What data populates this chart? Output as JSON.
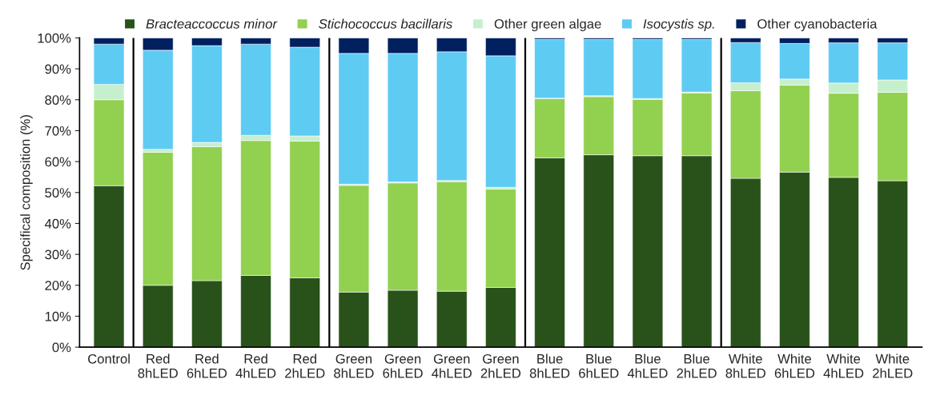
{
  "chart_data": {
    "type": "bar",
    "stacked": true,
    "ylabel": "Specifical composition (%)",
    "categories": [
      "Control",
      "Red\n8hLED",
      "Red\n6hLED",
      "Red\n4hLED",
      "Red\n2hLED",
      "Green\n8hLED",
      "Green\n6hLED",
      "Green\n4hLED",
      "Green\n2hLED",
      "Blue\n8hLED",
      "Blue\n6hLED",
      "Blue\n4hLED",
      "Blue\n2hLED",
      "White\n8hLED",
      "White\n6hLED",
      "White\n4hLED",
      "White\n2hLED"
    ],
    "series": [
      {
        "name": "Bracteaccoccus minor",
        "color": "#28521a",
        "values": [
          52.2,
          20,
          21.5,
          23.2,
          22.4,
          17.8,
          18.4,
          18.1,
          19.3,
          61.2,
          62.2,
          61.9,
          61.9,
          54.6,
          56.6,
          54.9,
          53.8
        ]
      },
      {
        "name": "Stichococcus bacillaris",
        "color": "#92d050",
        "values": [
          27.8,
          43,
          43.3,
          43.6,
          44.2,
          34.5,
          34.7,
          35.4,
          31.8,
          19.2,
          18.8,
          18.2,
          20.3,
          28.3,
          28.1,
          27.2,
          28.6
        ]
      },
      {
        "name": "Other green algae",
        "color": "#c6efce",
        "values": [
          5,
          1,
          1.4,
          1.7,
          1.7,
          0.4,
          0.3,
          0.4,
          0.6,
          0.1,
          0.3,
          0.3,
          0.3,
          2.6,
          2,
          3.3,
          4
        ]
      },
      {
        "name": "Isocystis sp.",
        "color": "#5ecbf3",
        "values": [
          13,
          32,
          31.3,
          29.5,
          28.7,
          42.3,
          41.6,
          41.6,
          42.5,
          19,
          18.2,
          19.1,
          17,
          13,
          11.5,
          13,
          12
        ]
      },
      {
        "name": "Other cyanobacteria",
        "color": "#002060",
        "values": [
          2,
          4,
          2.5,
          2,
          3,
          5,
          5,
          4.5,
          5.8,
          0.5,
          0.5,
          0.5,
          0.5,
          1.5,
          1.8,
          1.6,
          1.6
        ]
      }
    ],
    "ylim": [
      0,
      100
    ],
    "yticks": [
      {
        "value": 0,
        "label": "0%"
      },
      {
        "value": 10,
        "label": "10%"
      },
      {
        "value": 20,
        "label": "20%"
      },
      {
        "value": 30,
        "label": "30%"
      },
      {
        "value": 40,
        "label": "40%"
      },
      {
        "value": 50,
        "label": "50%"
      },
      {
        "value": 60,
        "label": "60%"
      },
      {
        "value": 70,
        "label": "70%"
      },
      {
        "value": 80,
        "label": "80%"
      },
      {
        "value": 90,
        "label": "90%"
      },
      {
        "value": 100,
        "label": "100%"
      }
    ],
    "legend": "top",
    "grid": false
  }
}
